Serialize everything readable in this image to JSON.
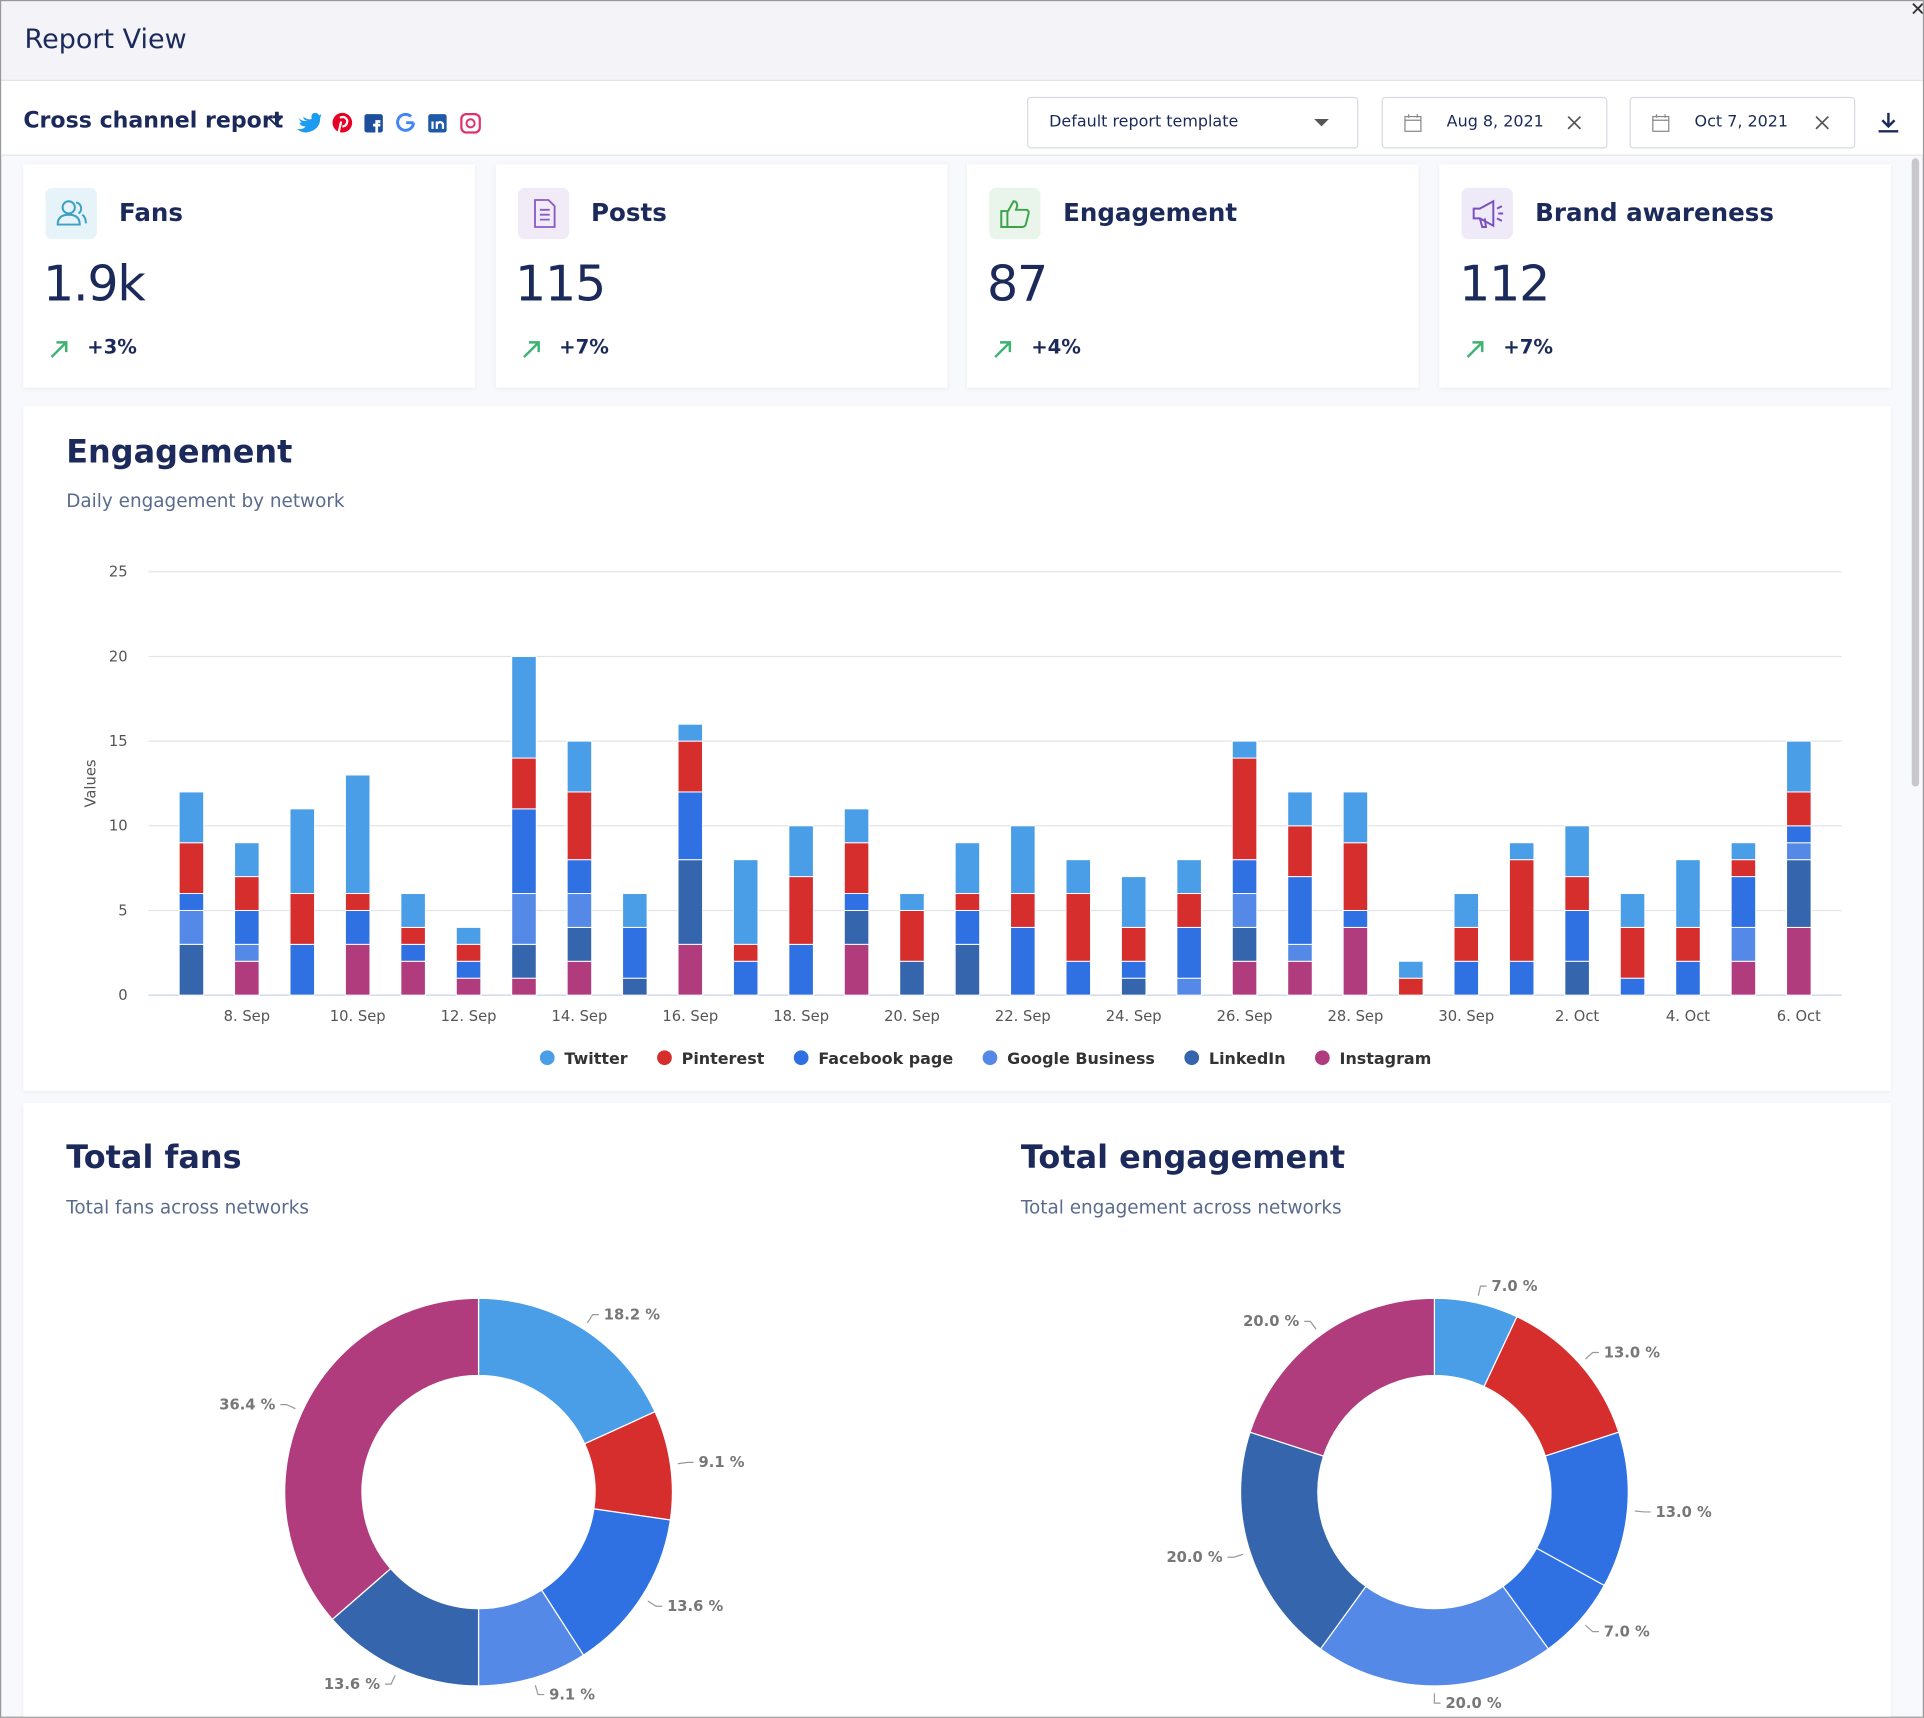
{
  "header": {
    "title": "Report View"
  },
  "toolbar": {
    "report": "Cross channel report",
    "template": "Default report template",
    "start_date": "Aug 8, 2021",
    "end_date": "Oct 7, 2021"
  },
  "kpis": [
    {
      "label": "Fans",
      "value": "1.9k",
      "change": "+3%"
    },
    {
      "label": "Posts",
      "value": "115",
      "change": "+7%"
    },
    {
      "label": "Engagement",
      "value": "87",
      "change": "+4%"
    },
    {
      "label": "Brand awareness",
      "value": "112",
      "change": "+7%"
    }
  ],
  "chart_data": [
    {
      "type": "bar",
      "stacked": true,
      "title": "Engagement",
      "subtitle": "Daily engagement by network",
      "y_label": "Values",
      "categories": [
        null,
        "8. Sep",
        null,
        "10. Sep",
        null,
        "12. Sep",
        null,
        "14. Sep",
        null,
        "16. Sep",
        null,
        "18. Sep",
        null,
        "20. Sep",
        null,
        "22. Sep",
        null,
        "24. Sep",
        null,
        "26. Sep",
        null,
        "28. Sep",
        null,
        "30. Sep",
        null,
        "2. Oct",
        null,
        "4. Oct",
        null,
        "6. Oct"
      ],
      "series": [
        {
          "name": "Twitter",
          "color": "#4a9ee8",
          "values": [
            3,
            2,
            5,
            7,
            2,
            1,
            6,
            3,
            2,
            1,
            5,
            3,
            2,
            1,
            3,
            4,
            2,
            3,
            2,
            1,
            2,
            3,
            1,
            2,
            1,
            3,
            2,
            4,
            1,
            3
          ]
        },
        {
          "name": "Pinterest",
          "color": "#d62d2d",
          "values": [
            3,
            2,
            3,
            1,
            1,
            1,
            3,
            4,
            0,
            3,
            1,
            4,
            3,
            3,
            1,
            2,
            4,
            2,
            2,
            6,
            3,
            4,
            1,
            2,
            6,
            2,
            3,
            2,
            1,
            2
          ]
        },
        {
          "name": "Facebook page",
          "color": "#2f70e3",
          "values": [
            1,
            2,
            3,
            2,
            1,
            1,
            5,
            2,
            3,
            4,
            2,
            3,
            1,
            0,
            2,
            4,
            2,
            1,
            3,
            2,
            4,
            1,
            0,
            2,
            2,
            3,
            1,
            2,
            3,
            1
          ]
        },
        {
          "name": "Google Business",
          "color": "#5589e8",
          "values": [
            2,
            1,
            0,
            0,
            0,
            0,
            3,
            2,
            0,
            0,
            0,
            0,
            0,
            0,
            0,
            0,
            0,
            0,
            1,
            2,
            1,
            0,
            0,
            0,
            0,
            0,
            0,
            0,
            2,
            1
          ]
        },
        {
          "name": "LinkedIn",
          "color": "#3565ac",
          "values": [
            3,
            0,
            0,
            0,
            0,
            0,
            2,
            2,
            1,
            5,
            0,
            0,
            2,
            2,
            3,
            0,
            0,
            1,
            0,
            2,
            0,
            0,
            0,
            0,
            0,
            2,
            0,
            0,
            0,
            4
          ]
        },
        {
          "name": "Instagram",
          "color": "#b03c7e",
          "values": [
            0,
            2,
            0,
            3,
            2,
            1,
            1,
            2,
            0,
            3,
            0,
            0,
            3,
            0,
            0,
            0,
            0,
            0,
            0,
            2,
            2,
            4,
            0,
            0,
            0,
            0,
            0,
            0,
            2,
            4
          ]
        }
      ],
      "ylim": [
        0,
        25
      ],
      "yticks": [
        0,
        5,
        10,
        15,
        20,
        25
      ],
      "grid": true,
      "legend": "bottom"
    },
    {
      "type": "pie",
      "donut": true,
      "title": "Total fans",
      "subtitle": "Total fans across networks",
      "values": [
        18.2,
        9.1,
        13.6,
        9.1,
        13.6,
        36.4
      ],
      "value_labels": [
        "18.2 %",
        "9.1 %",
        "13.6 %",
        "9.1 %",
        "13.6 %",
        "36.4 %"
      ],
      "colors": [
        "#4a9ee8",
        "#d62d2d",
        "#2f70e3",
        "#5589e8",
        "#3565ac",
        "#b03c7e"
      ]
    },
    {
      "type": "pie",
      "donut": true,
      "title": "Total engagement",
      "subtitle": "Total engagement across networks",
      "values": [
        7.0,
        13.0,
        13.0,
        7.0,
        20.0,
        20.0,
        20.0
      ],
      "value_labels": [
        "7.0 %",
        "13.0 %",
        "13.0 %",
        "7.0 %",
        "20.0 %",
        "20.0 %",
        "20.0 %"
      ],
      "colors": [
        "#4a9ee8",
        "#d62d2d",
        "#2f70e3",
        "#2f70e3",
        "#5589e8",
        "#3565ac",
        "#b03c7e"
      ]
    }
  ]
}
